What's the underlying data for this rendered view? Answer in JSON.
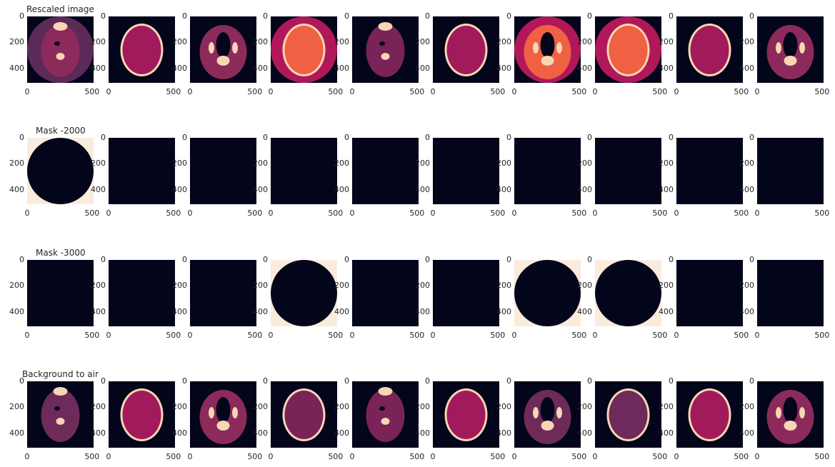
{
  "chart_data": {
    "type": "image-grid",
    "columns": 10,
    "row_titles": [
      "Rescaled image",
      "Mask -2000",
      "Mask -3000",
      "Background to air"
    ],
    "x_ticks": [
      "0",
      "500"
    ],
    "y_ticks": [
      "0",
      "200",
      "400"
    ],
    "ylim": [
      512,
      0
    ],
    "xlim": [
      0,
      512
    ],
    "colormap": {
      "name": "rocket",
      "dark": "#03051a",
      "mask_true": "#faebdd",
      "soft_tissue": "#a11a5b",
      "bone": "#f7d6b4",
      "bright": "#f06043"
    },
    "rows": [
      {
        "name": "rescaled",
        "panels": [
          {
            "kind": "ct",
            "bg": "#5c2a59",
            "head": "#8c2a5c",
            "circle_fov": true,
            "variant": "neck"
          },
          {
            "kind": "ct",
            "bg": "#03051a",
            "head": "#a11a5b",
            "circle_fov": false,
            "variant": "skull"
          },
          {
            "kind": "ct",
            "bg": "#03051a",
            "head": "#8c2a5c",
            "circle_fov": false,
            "variant": "face"
          },
          {
            "kind": "ct",
            "bg": "#b0185a",
            "head": "#f06043",
            "circle_fov": true,
            "variant": "skull"
          },
          {
            "kind": "ct",
            "bg": "#03051a",
            "head": "#7a2358",
            "circle_fov": false,
            "variant": "neck"
          },
          {
            "kind": "ct",
            "bg": "#03051a",
            "head": "#a11a5b",
            "circle_fov": false,
            "variant": "skull"
          },
          {
            "kind": "ct",
            "bg": "#b0185a",
            "head": "#f06043",
            "circle_fov": true,
            "variant": "face"
          },
          {
            "kind": "ct",
            "bg": "#b0185a",
            "head": "#f06043",
            "circle_fov": true,
            "variant": "skull"
          },
          {
            "kind": "ct",
            "bg": "#03051a",
            "head": "#a11a5b",
            "circle_fov": false,
            "variant": "skull"
          },
          {
            "kind": "ct",
            "bg": "#03051a",
            "head": "#8c2a5c",
            "circle_fov": false,
            "variant": "face"
          }
        ]
      },
      {
        "name": "mask-2000",
        "panels": [
          {
            "kind": "mask",
            "circle": true
          },
          {
            "kind": "mask",
            "circle": false
          },
          {
            "kind": "mask",
            "circle": false
          },
          {
            "kind": "mask",
            "circle": false
          },
          {
            "kind": "mask",
            "circle": false
          },
          {
            "kind": "mask",
            "circle": false
          },
          {
            "kind": "mask",
            "circle": false
          },
          {
            "kind": "mask",
            "circle": false
          },
          {
            "kind": "mask",
            "circle": false
          },
          {
            "kind": "mask",
            "circle": false
          }
        ]
      },
      {
        "name": "mask-3000",
        "panels": [
          {
            "kind": "mask",
            "circle": false
          },
          {
            "kind": "mask",
            "circle": false
          },
          {
            "kind": "mask",
            "circle": false
          },
          {
            "kind": "mask",
            "circle": true
          },
          {
            "kind": "mask",
            "circle": false
          },
          {
            "kind": "mask",
            "circle": false
          },
          {
            "kind": "mask",
            "circle": true
          },
          {
            "kind": "mask",
            "circle": true
          },
          {
            "kind": "mask",
            "circle": false
          },
          {
            "kind": "mask",
            "circle": false
          }
        ]
      },
      {
        "name": "background-to-air",
        "panels": [
          {
            "kind": "ct",
            "bg": "#03051a",
            "head": "#6e2a5a",
            "circle_fov": false,
            "variant": "neck"
          },
          {
            "kind": "ct",
            "bg": "#03051a",
            "head": "#a11a5b",
            "circle_fov": false,
            "variant": "skull"
          },
          {
            "kind": "ct",
            "bg": "#03051a",
            "head": "#8c2a5c",
            "circle_fov": false,
            "variant": "face"
          },
          {
            "kind": "ct",
            "bg": "#03051a",
            "head": "#7a2358",
            "circle_fov": false,
            "variant": "skull"
          },
          {
            "kind": "ct",
            "bg": "#03051a",
            "head": "#7a2358",
            "circle_fov": false,
            "variant": "neck"
          },
          {
            "kind": "ct",
            "bg": "#03051a",
            "head": "#a11a5b",
            "circle_fov": false,
            "variant": "skull"
          },
          {
            "kind": "ct",
            "bg": "#03051a",
            "head": "#6e2a5a",
            "circle_fov": false,
            "variant": "face"
          },
          {
            "kind": "ct",
            "bg": "#03051a",
            "head": "#6e2a5a",
            "circle_fov": false,
            "variant": "skull"
          },
          {
            "kind": "ct",
            "bg": "#03051a",
            "head": "#a11a5b",
            "circle_fov": false,
            "variant": "skull"
          },
          {
            "kind": "ct",
            "bg": "#03051a",
            "head": "#8c2a5c",
            "circle_fov": false,
            "variant": "face"
          }
        ]
      }
    ]
  }
}
